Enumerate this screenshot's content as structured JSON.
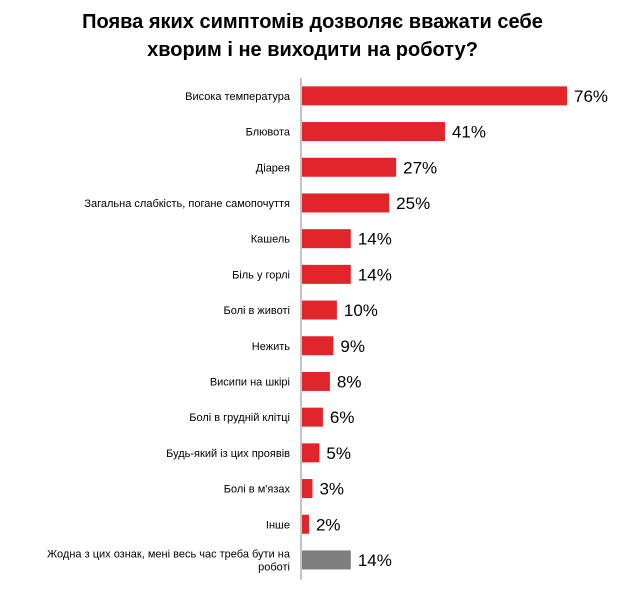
{
  "title_lines": [
    "Поява яких симптомів дозволяє вважати себе",
    "хворим і не виходити на роботу?"
  ],
  "colors": {
    "bar": "#e0252b",
    "bar_other": "#7f7f7f",
    "axis": "#888888"
  },
  "chart_data": {
    "type": "bar",
    "orientation": "horizontal",
    "title": "Поява яких симптомів дозволяє вважати себе хворим і не виходити на роботу?",
    "unit": "%",
    "categories": [
      [
        "Висока температура"
      ],
      [
        "Блювота"
      ],
      [
        "Діарея"
      ],
      [
        "Загальна слабкість, погане самопочуття"
      ],
      [
        "Кашель"
      ],
      [
        "Біль у горлі"
      ],
      [
        "Болі в животі"
      ],
      [
        "Нежить"
      ],
      [
        "Висипи на шкірі"
      ],
      [
        "Болі в грудній клітці"
      ],
      [
        "Будь-який із цих проявів"
      ],
      [
        "Болі в м'язах"
      ],
      [
        "Інше"
      ],
      [
        "Жодна з цих ознак, мені весь час треба бути на",
        "роботі"
      ]
    ],
    "values": [
      76,
      41,
      27,
      25,
      14,
      14,
      10,
      9,
      8,
      6,
      5,
      3,
      2,
      14
    ],
    "value_labels": [
      "76%",
      "41%",
      "27%",
      "25%",
      "14%",
      "14%",
      "10%",
      "9%",
      "8%",
      "6%",
      "5%",
      "3%",
      "2%",
      "14%"
    ],
    "bar_color_keys": [
      "bar",
      "bar",
      "bar",
      "bar",
      "bar",
      "bar",
      "bar",
      "bar",
      "bar",
      "bar",
      "bar",
      "bar",
      "bar",
      "bar_other"
    ],
    "xlim": [
      0,
      100
    ],
    "grid": false,
    "legend": false
  }
}
